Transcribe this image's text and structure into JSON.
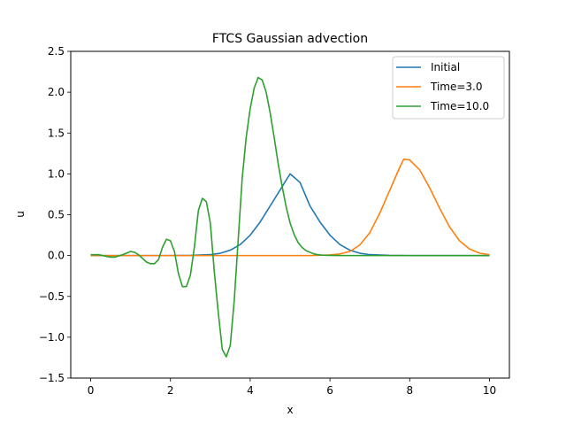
{
  "chart_data": {
    "type": "line",
    "title": "FTCS Gaussian advection",
    "xlabel": "x",
    "ylabel": "u",
    "xlim": [
      -0.5,
      10.5
    ],
    "ylim": [
      -1.5,
      2.5
    ],
    "xticks": [
      0,
      2,
      4,
      6,
      8,
      10
    ],
    "yticks": [
      -1.5,
      -1.0,
      -0.5,
      0.0,
      0.5,
      1.0,
      1.5,
      2.0,
      2.5
    ],
    "xtick_labels": [
      "0",
      "2",
      "4",
      "6",
      "8",
      "10"
    ],
    "ytick_labels": [
      "−1.5",
      "−1.0",
      "−0.5",
      "0.0",
      "0.5",
      "1.0",
      "1.5",
      "2.0",
      "2.5"
    ],
    "grid": false,
    "legend_position": "top-right",
    "series": [
      {
        "name": "Initial",
        "color": "#1f77b4",
        "x": [
          0,
          0.5,
          1,
          1.5,
          2,
          2.5,
          3,
          3.25,
          3.5,
          3.75,
          4,
          4.25,
          4.5,
          4.75,
          5,
          5.25,
          5.5,
          5.75,
          6,
          6.25,
          6.5,
          6.75,
          7,
          7.5,
          8,
          9,
          10
        ],
        "y": [
          0,
          0,
          0,
          0,
          0,
          0.002,
          0.011,
          0.028,
          0.066,
          0.135,
          0.249,
          0.411,
          0.607,
          0.803,
          1.0,
          0.895,
          0.607,
          0.411,
          0.249,
          0.135,
          0.066,
          0.028,
          0.011,
          0.002,
          0,
          0,
          0
        ]
      },
      {
        "name": "Time=3.0",
        "color": "#ff7f0e",
        "x": [
          0,
          1,
          2,
          3,
          4,
          5,
          5.5,
          6,
          6.25,
          6.5,
          6.75,
          7,
          7.25,
          7.5,
          7.75,
          7.85,
          8,
          8.25,
          8.5,
          8.75,
          9,
          9.25,
          9.5,
          9.75,
          10
        ],
        "y": [
          0,
          0,
          0,
          0,
          0,
          0,
          0,
          0.007,
          0.02,
          0.05,
          0.13,
          0.28,
          0.52,
          0.8,
          1.08,
          1.18,
          1.17,
          1.05,
          0.83,
          0.58,
          0.35,
          0.18,
          0.08,
          0.03,
          0.01
        ]
      },
      {
        "name": "Time=10.0",
        "color": "#2ca02c",
        "x": [
          0,
          0.2,
          0.4,
          0.5,
          0.6,
          0.8,
          1.0,
          1.1,
          1.2,
          1.4,
          1.5,
          1.6,
          1.7,
          1.8,
          1.9,
          2.0,
          2.1,
          2.2,
          2.3,
          2.4,
          2.5,
          2.6,
          2.7,
          2.8,
          2.9,
          3.0,
          3.1,
          3.2,
          3.3,
          3.4,
          3.5,
          3.6,
          3.7,
          3.8,
          3.9,
          4.0,
          4.1,
          4.2,
          4.3,
          4.4,
          4.5,
          4.6,
          4.7,
          4.8,
          4.9,
          5.0,
          5.1,
          5.2,
          5.3,
          5.4,
          5.5,
          5.6,
          5.7,
          5.8,
          5.9,
          6.0,
          6.2,
          6.4,
          6.6,
          6.8,
          7.0,
          7.5,
          8.0,
          9.0,
          10.0
        ],
        "y": [
          0.01,
          0.01,
          -0.01,
          -0.02,
          -0.02,
          0.01,
          0.05,
          0.04,
          0.01,
          -0.08,
          -0.1,
          -0.1,
          -0.05,
          0.1,
          0.2,
          0.18,
          0.05,
          -0.22,
          -0.38,
          -0.38,
          -0.24,
          0.1,
          0.55,
          0.7,
          0.66,
          0.4,
          -0.2,
          -0.7,
          -1.15,
          -1.24,
          -1.1,
          -0.55,
          0.2,
          0.95,
          1.45,
          1.8,
          2.05,
          2.18,
          2.15,
          2.0,
          1.75,
          1.45,
          1.13,
          0.85,
          0.6,
          0.4,
          0.26,
          0.16,
          0.1,
          0.06,
          0.04,
          0.02,
          0.01,
          0.005,
          0.003,
          0.002,
          0.001,
          0.0,
          0.0,
          0.0,
          0.0,
          0.0,
          0.0,
          0.0,
          0.0
        ]
      }
    ]
  }
}
